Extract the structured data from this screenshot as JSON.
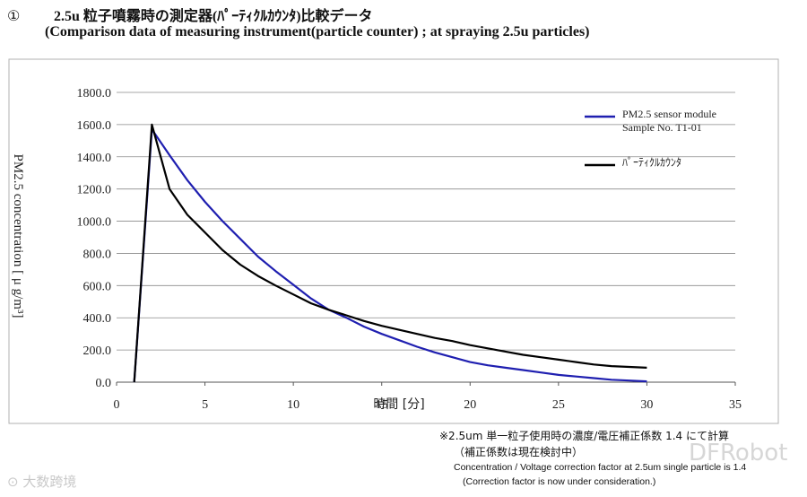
{
  "header": {
    "number": "①",
    "title_jp": "2.5u 粒子噴霧時の測定器(ﾊﾟｰﾃｨｸﾙｶｳﾝﾀ)比較データ",
    "title_en": "(Comparison data of measuring instrument(particle counter) ; at spraying 2.5u particles)"
  },
  "notes": {
    "line1": "※2.5um 単一粒子使用時の濃度/電圧補正係数 1.4 にて計算",
    "line2": "（補正係数は現在検討中）",
    "line3": "Concentration / Voltage correction factor at 2.5um single particle is 1.4",
    "line4": "(Correction factor is now under consideration.)"
  },
  "watermarks": {
    "left": "大数跨境",
    "right": "DFRobot"
  },
  "colors": {
    "series_sensor": "#1f1fb0",
    "series_counter": "#000000",
    "grid": "#8a8a8a",
    "frame": "#b0b0b0"
  },
  "chart_data": {
    "type": "line",
    "title": "",
    "xlabel": "時間 [分]",
    "ylabel": "PM2.5 concentration  [ μ g/m³]",
    "xlim": [
      0,
      35
    ],
    "ylim": [
      0,
      1800
    ],
    "xticks": [
      0,
      5,
      10,
      15,
      20,
      25,
      30,
      35
    ],
    "yticks": [
      0,
      200,
      400,
      600,
      800,
      1000,
      1200,
      1400,
      1600,
      1800
    ],
    "ytick_labels": [
      "0.0",
      "200.0",
      "400.0",
      "600.0",
      "800.0",
      "1000.0",
      "1200.0",
      "1400.0",
      "1600.0",
      "1800.0"
    ],
    "grid": "horizontal",
    "legend": "top-right",
    "series": [
      {
        "name": "PM2.5 sensor module Sample No. T1-01",
        "legend_lines": [
          "PM2.5 sensor module",
          "Sample No. T1-01"
        ],
        "x": [
          1,
          2,
          3,
          4,
          5,
          6,
          7,
          8,
          9,
          10,
          11,
          12,
          13,
          14,
          15,
          16,
          17,
          18,
          19,
          20,
          21,
          22,
          23,
          24,
          25,
          26,
          27,
          28,
          29,
          30
        ],
        "y": [
          0,
          1570,
          1410,
          1255,
          1120,
          1000,
          890,
          780,
          690,
          605,
          520,
          450,
          400,
          345,
          300,
          260,
          220,
          185,
          155,
          125,
          105,
          90,
          75,
          60,
          45,
          35,
          25,
          15,
          10,
          5
        ]
      },
      {
        "name": "ﾊﾟｰﾃｨｸﾙｶｳﾝﾀ",
        "legend_lines": [
          "ﾊﾟｰﾃｨｸﾙｶｳﾝﾀ"
        ],
        "x": [
          1,
          2,
          3,
          4,
          5,
          6,
          7,
          8,
          9,
          10,
          11,
          12,
          13,
          14,
          15,
          16,
          17,
          18,
          19,
          20,
          21,
          22,
          23,
          24,
          25,
          26,
          27,
          28,
          29,
          30
        ],
        "y": [
          0,
          1600,
          1200,
          1040,
          930,
          820,
          730,
          660,
          600,
          545,
          490,
          450,
          415,
          380,
          350,
          325,
          300,
          275,
          255,
          230,
          210,
          190,
          170,
          155,
          140,
          125,
          110,
          100,
          95,
          90
        ]
      }
    ]
  }
}
